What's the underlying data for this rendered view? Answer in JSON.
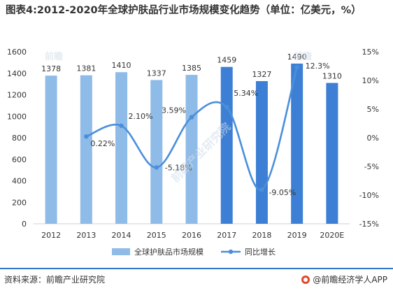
{
  "title": "图表4:2012-2020年全球护肤品行业市场规模变化趋势（单位：亿美元，%）",
  "source": {
    "label": "资料来源：前瞻产业研究院",
    "brand": "@前瞻经济学人APP"
  },
  "colors": {
    "bar_actual": "#8fbbe8",
    "bar_dark": "#3d7fd4",
    "line": "#4a8fdb",
    "axis_text": "#333333",
    "rule": "#2f78c8"
  },
  "chart_data": {
    "type": "bar",
    "categories": [
      "2012",
      "2013",
      "2014",
      "2015",
      "2016",
      "2017",
      "2018",
      "2019",
      "2020E"
    ],
    "series": [
      {
        "name": "全球护肤品市场规模",
        "type": "bar",
        "axis": "left",
        "values": [
          1378,
          1381,
          1410,
          1337,
          1385,
          1459,
          1327,
          1490,
          1310
        ],
        "labels": [
          "1378",
          "1381",
          "1410",
          "1337",
          "1385",
          "1459",
          "1327",
          "1490",
          "1310"
        ]
      },
      {
        "name": "同比增长",
        "type": "line",
        "axis": "right",
        "values": [
          null,
          0.22,
          2.1,
          -5.18,
          3.59,
          5.34,
          -9.05,
          12.3,
          null
        ],
        "labels": [
          "",
          "0.22%",
          "2.10%",
          "-5.18%",
          "3.59%",
          "5.34%",
          "-9.05%",
          "12.3%",
          ""
        ]
      }
    ],
    "y_left": {
      "range": [
        0,
        1600
      ],
      "ticks": [
        0,
        200,
        400,
        600,
        800,
        1000,
        1200,
        1400,
        1600
      ],
      "tick_labels": [
        "0",
        "200",
        "400",
        "600",
        "800",
        "1000",
        "1200",
        "1400",
        "1600"
      ]
    },
    "y_right": {
      "range": [
        -15,
        15
      ],
      "ticks": [
        -15,
        -10,
        -5,
        0,
        5,
        10,
        15
      ],
      "tick_labels": [
        "-15%",
        "-10%",
        "-5%",
        "0%",
        "5%",
        "10%",
        "15%"
      ]
    },
    "grid": false,
    "legend": "bottom"
  }
}
